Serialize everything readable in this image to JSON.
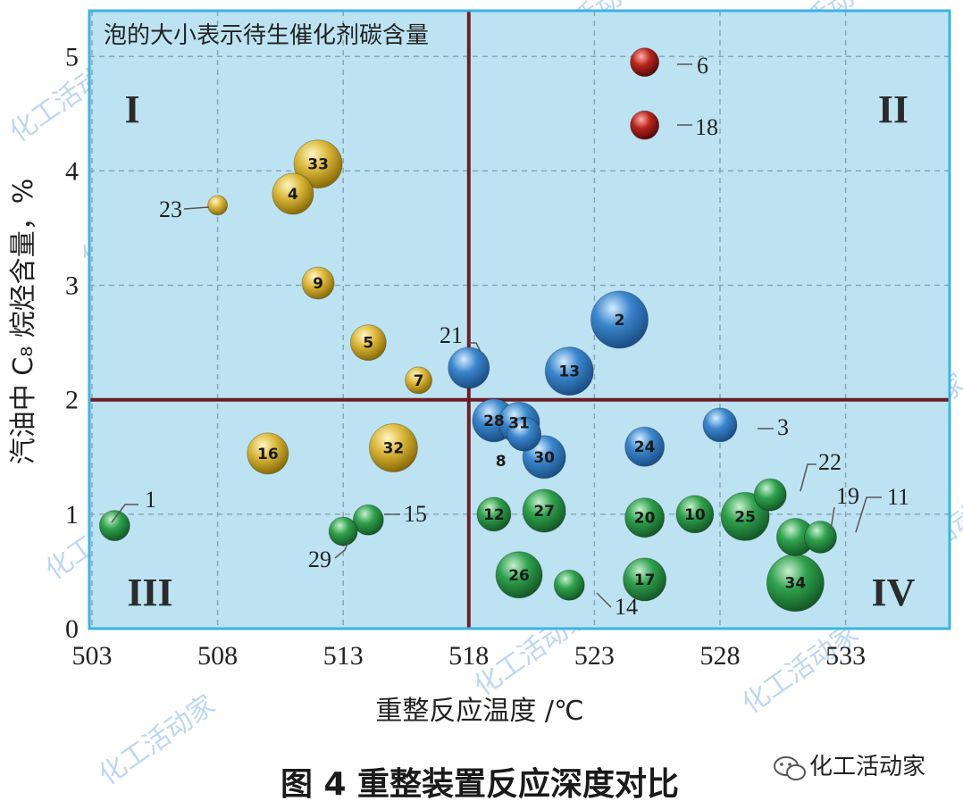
{
  "chart_data": {
    "type": "bubble",
    "note": "泡的大小表示待生催化剂碳含量",
    "xlabel": "重整反应温度 /℃",
    "ylabel": "汽油中 C₈ 烷烃含量，%",
    "xlim": [
      503,
      536.5
    ],
    "ylim": [
      0,
      5.4
    ],
    "x_ticks": [
      503,
      508,
      513,
      518,
      523,
      528,
      533
    ],
    "y_ticks": [
      0,
      1,
      2,
      3,
      4,
      5
    ],
    "grid": true,
    "divider": {
      "x": 518,
      "y": 2
    },
    "quadrant_labels": [
      "I",
      "II",
      "III",
      "IV"
    ],
    "colors": {
      "gold": "#c9a317",
      "red": "#9e1a1a",
      "blue": "#2f78c0",
      "green": "#2b9a48",
      "plot_bg": "#bde3f3",
      "frame": "#3bb3e3",
      "divider": "#6b1e24"
    },
    "points": [
      {
        "id": "1",
        "x": 503.9,
        "y": 0.9,
        "size": 17,
        "color": "green",
        "label_pos": "outside"
      },
      {
        "id": "2",
        "x": 524.0,
        "y": 2.7,
        "size": 32,
        "color": "blue",
        "label_pos": "inside"
      },
      {
        "id": "3",
        "x": 528.0,
        "y": 1.78,
        "size": 19,
        "color": "blue",
        "label_pos": "outside"
      },
      {
        "id": "4",
        "x": 511.0,
        "y": 3.8,
        "size": 23,
        "color": "gold",
        "label_pos": "inside"
      },
      {
        "id": "5",
        "x": 514.0,
        "y": 2.5,
        "size": 20,
        "color": "gold",
        "label_pos": "inside"
      },
      {
        "id": "6",
        "x": 525.0,
        "y": 4.95,
        "size": 16,
        "color": "red",
        "label_pos": "outside"
      },
      {
        "id": "7",
        "x": 516.0,
        "y": 2.17,
        "size": 15,
        "color": "gold",
        "label_pos": "inside"
      },
      {
        "id": "8",
        "x": 520.2,
        "y": 1.7,
        "size": 19,
        "color": "blue",
        "label_pos": "below"
      },
      {
        "id": "9",
        "x": 512.0,
        "y": 3.02,
        "size": 18,
        "color": "gold",
        "label_pos": "inside"
      },
      {
        "id": "10",
        "x": 527.0,
        "y": 1.0,
        "size": 21,
        "color": "green",
        "label_pos": "inside"
      },
      {
        "id": "11",
        "x": 532.0,
        "y": 0.8,
        "size": 18,
        "color": "green",
        "label_pos": "outside"
      },
      {
        "id": "12",
        "x": 519.0,
        "y": 1.0,
        "size": 19,
        "color": "green",
        "label_pos": "inside"
      },
      {
        "id": "13",
        "x": 522.0,
        "y": 2.25,
        "size": 27,
        "color": "blue",
        "label_pos": "inside"
      },
      {
        "id": "14",
        "x": 522.0,
        "y": 0.38,
        "size": 17,
        "color": "green",
        "label_pos": "outside"
      },
      {
        "id": "15",
        "x": 514.0,
        "y": 0.95,
        "size": 17,
        "color": "green",
        "label_pos": "outside"
      },
      {
        "id": "16",
        "x": 510.0,
        "y": 1.53,
        "size": 23,
        "color": "gold",
        "label_pos": "inside"
      },
      {
        "id": "17",
        "x": 525.0,
        "y": 0.43,
        "size": 24,
        "color": "green",
        "label_pos": "inside"
      },
      {
        "id": "18",
        "x": 525.0,
        "y": 4.4,
        "size": 16,
        "color": "red",
        "label_pos": "outside"
      },
      {
        "id": "19",
        "x": 531.0,
        "y": 0.8,
        "size": 21,
        "color": "green",
        "label_pos": "outside"
      },
      {
        "id": "20",
        "x": 525.0,
        "y": 0.97,
        "size": 22,
        "color": "green",
        "label_pos": "inside"
      },
      {
        "id": "21",
        "x": 518.0,
        "y": 2.28,
        "size": 23,
        "color": "blue",
        "label_pos": "outside"
      },
      {
        "id": "22",
        "x": 530.0,
        "y": 1.17,
        "size": 18,
        "color": "green",
        "label_pos": "outside"
      },
      {
        "id": "23",
        "x": 508.0,
        "y": 3.7,
        "size": 11,
        "color": "gold",
        "label_pos": "outside"
      },
      {
        "id": "24",
        "x": 525.0,
        "y": 1.59,
        "size": 22,
        "color": "blue",
        "label_pos": "inside"
      },
      {
        "id": "25",
        "x": 529.0,
        "y": 0.98,
        "size": 27,
        "color": "green",
        "label_pos": "inside"
      },
      {
        "id": "26",
        "x": 520.0,
        "y": 0.47,
        "size": 26,
        "color": "green",
        "label_pos": "inside"
      },
      {
        "id": "27",
        "x": 521.0,
        "y": 1.03,
        "size": 24,
        "color": "green",
        "label_pos": "inside"
      },
      {
        "id": "28",
        "x": 519.0,
        "y": 1.82,
        "size": 24,
        "color": "blue",
        "label_pos": "inside"
      },
      {
        "id": "29",
        "x": 513.0,
        "y": 0.85,
        "size": 16,
        "color": "green",
        "label_pos": "outside"
      },
      {
        "id": "30",
        "x": 521.0,
        "y": 1.5,
        "size": 24,
        "color": "blue",
        "label_pos": "inside"
      },
      {
        "id": "31",
        "x": 520.0,
        "y": 1.8,
        "size": 23,
        "color": "blue",
        "label_pos": "inside"
      },
      {
        "id": "32",
        "x": 515.0,
        "y": 1.58,
        "size": 27,
        "color": "gold",
        "label_pos": "inside"
      },
      {
        "id": "33",
        "x": 512.0,
        "y": 4.06,
        "size": 27,
        "color": "gold",
        "label_pos": "inside"
      },
      {
        "id": "34",
        "x": 531.0,
        "y": 0.4,
        "size": 32,
        "color": "green",
        "label_pos": "inside"
      }
    ]
  },
  "caption": "图 4   重整装置反应深度对比",
  "brand": "化工活动家",
  "watermark_text": "化工活动家"
}
